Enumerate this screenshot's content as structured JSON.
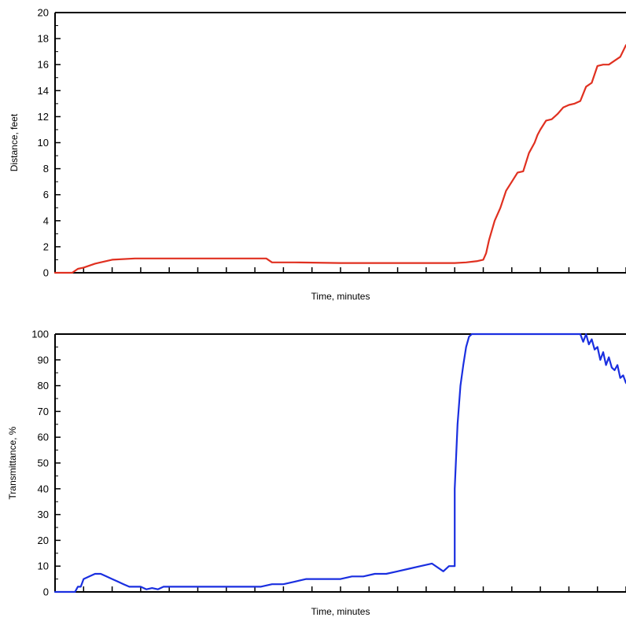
{
  "chart_data": [
    {
      "type": "line",
      "title": "",
      "xlabel": "Time, minutes",
      "ylabel": "Distance, feet",
      "ylim": [
        0,
        20
      ],
      "xlim": [
        0,
        1
      ],
      "y_ticks": [
        "0",
        "2",
        "4",
        "6",
        "8",
        "10",
        "12",
        "14",
        "16",
        "18",
        "20"
      ],
      "x_tick_count": 20,
      "grid": false,
      "legend": "none",
      "series": [
        {
          "color": "#e03020",
          "x": [
            0,
            0.03,
            0.04,
            0.05,
            0.07,
            0.1,
            0.14,
            0.18,
            0.22,
            0.28,
            0.34,
            0.37,
            0.38,
            0.42,
            0.5,
            0.6,
            0.7,
            0.72,
            0.74,
            0.75,
            0.755,
            0.76,
            0.77,
            0.78,
            0.79,
            0.8,
            0.81,
            0.82,
            0.83,
            0.84,
            0.845,
            0.85,
            0.86,
            0.87,
            0.88,
            0.89,
            0.9,
            0.91,
            0.92,
            0.93,
            0.94,
            0.95,
            0.96,
            0.97,
            0.98,
            0.99,
            1.0
          ],
          "y": [
            0,
            0,
            0.3,
            0.4,
            0.7,
            1.0,
            1.1,
            1.1,
            1.1,
            1.1,
            1.1,
            1.1,
            0.8,
            0.8,
            0.75,
            0.75,
            0.75,
            0.8,
            0.9,
            1.0,
            1.5,
            2.5,
            4.0,
            5.0,
            6.3,
            7.0,
            7.7,
            7.8,
            9.2,
            10.0,
            10.6,
            11.0,
            11.7,
            11.8,
            12.2,
            12.7,
            12.9,
            13.0,
            13.2,
            14.3,
            14.6,
            15.9,
            16.0,
            16.0,
            16.3,
            16.6,
            17.5
          ]
        }
      ]
    },
    {
      "type": "line",
      "title": "",
      "xlabel": "Time, minutes",
      "ylabel": "Transmittance, %",
      "ylim": [
        0,
        100
      ],
      "xlim": [
        0,
        1
      ],
      "y_ticks": [
        "0",
        "10",
        "20",
        "30",
        "40",
        "50",
        "60",
        "70",
        "80",
        "90",
        "100"
      ],
      "x_tick_count": 20,
      "grid": false,
      "legend": "none",
      "series": [
        {
          "color": "#1a2fe0",
          "x": [
            0,
            0.035,
            0.04,
            0.045,
            0.05,
            0.06,
            0.07,
            0.08,
            0.09,
            0.1,
            0.11,
            0.12,
            0.13,
            0.14,
            0.15,
            0.16,
            0.17,
            0.18,
            0.19,
            0.2,
            0.22,
            0.24,
            0.26,
            0.28,
            0.3,
            0.32,
            0.34,
            0.36,
            0.38,
            0.4,
            0.42,
            0.44,
            0.46,
            0.48,
            0.5,
            0.52,
            0.54,
            0.56,
            0.58,
            0.6,
            0.62,
            0.64,
            0.66,
            0.68,
            0.69,
            0.7,
            0.7,
            0.705,
            0.71,
            0.715,
            0.72,
            0.725,
            0.73,
            0.74,
            0.8,
            0.9,
            0.92,
            0.925,
            0.93,
            0.935,
            0.94,
            0.945,
            0.95,
            0.955,
            0.96,
            0.965,
            0.97,
            0.975,
            0.98,
            0.985,
            0.99,
            0.995,
            1.0
          ],
          "y": [
            0,
            0,
            2,
            2,
            5,
            6,
            7,
            7,
            6,
            5,
            4,
            3,
            2,
            2,
            2,
            1,
            1.5,
            1,
            2,
            2,
            2,
            2,
            2,
            2,
            2,
            2,
            2,
            2,
            3,
            3,
            4,
            5,
            5,
            5,
            5,
            6,
            6,
            7,
            7,
            8,
            9,
            10,
            11,
            8,
            10,
            10,
            40,
            65,
            80,
            88,
            95,
            99,
            100,
            100,
            100,
            100,
            100,
            97,
            100,
            96,
            98,
            94,
            95,
            90,
            93,
            88,
            91,
            87,
            86,
            88,
            83,
            84,
            81
          ]
        }
      ]
    }
  ]
}
